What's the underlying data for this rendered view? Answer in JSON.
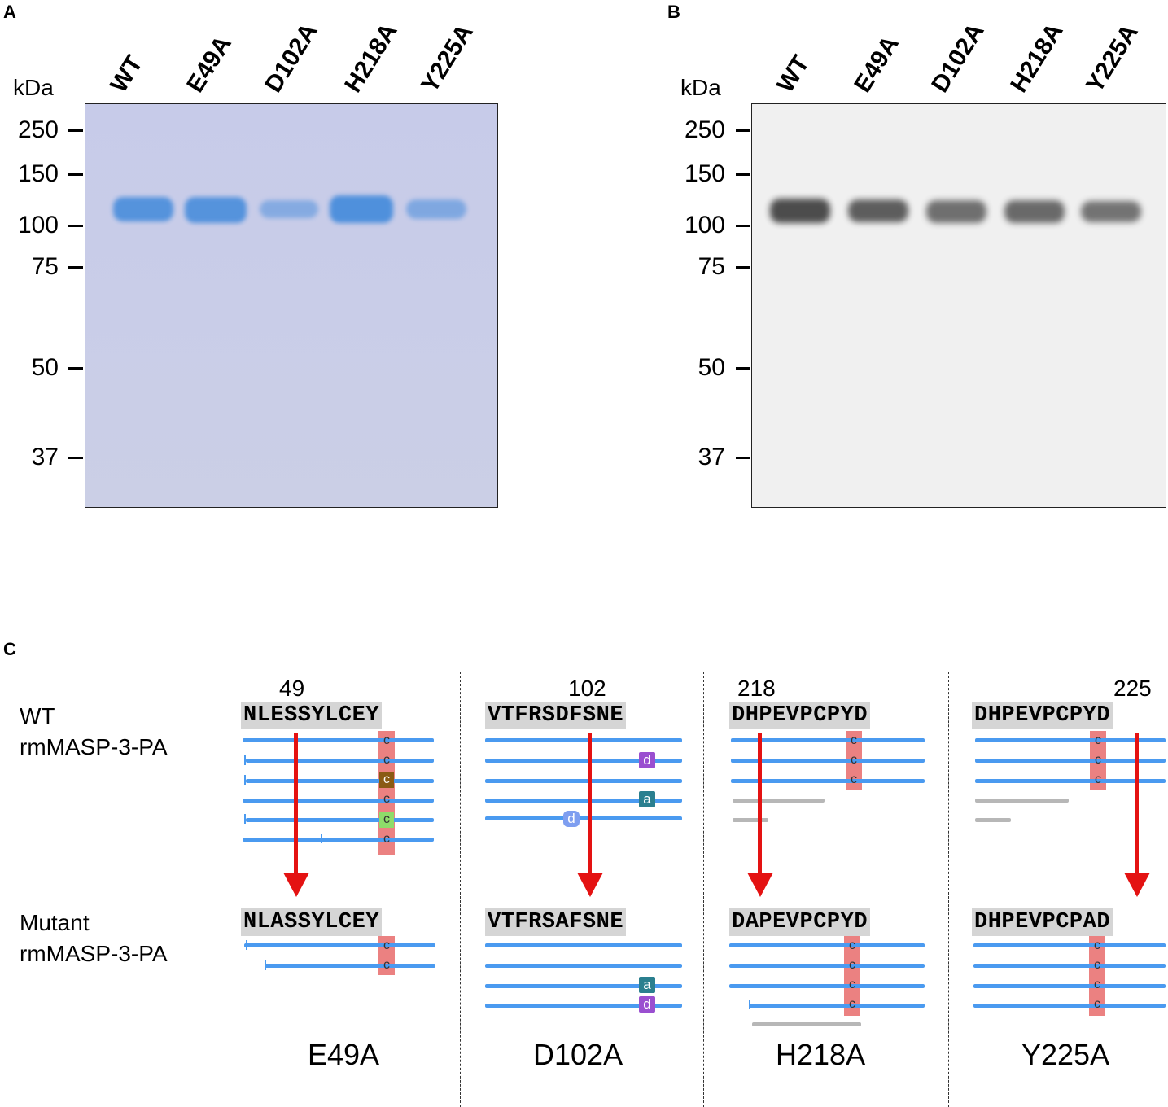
{
  "panels": {
    "a": {
      "letter": "A"
    },
    "b": {
      "letter": "B"
    },
    "c": {
      "letter": "C"
    }
  },
  "gel": {
    "unit": "kDa",
    "markers": [
      "250",
      "150",
      "100",
      "75",
      "50",
      "37"
    ],
    "lanes": [
      "WT",
      "E49A",
      "D102A",
      "H218A",
      "Y225A"
    ],
    "band_color_a": "#4f90dc",
    "band_color_b": "#444444"
  },
  "alignment": {
    "row_labels": {
      "wt_line1": "WT",
      "wt_line2": "rmMASP-3-PA",
      "mut_line1": "Mutant",
      "mut_line2": "rmMASP-3-PA"
    },
    "mutants": [
      {
        "name": "E49A",
        "position": "49",
        "wt_seq": "NLESSYLCEY",
        "mut_seq": "NLASSYLCEY"
      },
      {
        "name": "D102A",
        "position": "102",
        "wt_seq": "VTFRSDFSNE",
        "mut_seq": "VTFRSAFSNE"
      },
      {
        "name": "H218A",
        "position": "218",
        "wt_seq": "DHPEVPCPYD",
        "mut_seq": "DAPEVPCPYD"
      },
      {
        "name": "Y225A",
        "position": "225",
        "wt_seq": "DHPEVPCPYD",
        "mut_seq": "DHPEVPCPAD"
      }
    ],
    "cell_letters": {
      "c": "c",
      "d": "d",
      "a": "a"
    },
    "arrow_color": "#e41212"
  }
}
